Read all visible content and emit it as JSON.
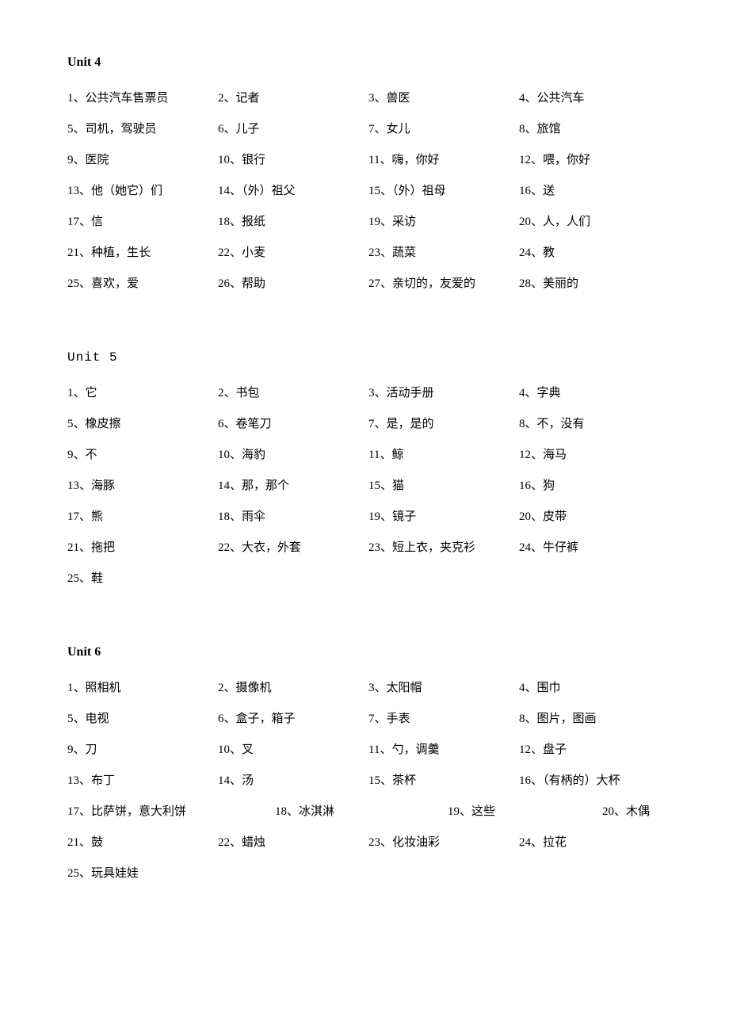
{
  "text_color": "#000000",
  "background_color": "#ffffff",
  "font_size_title": 16,
  "font_size_item": 15,
  "units": [
    {
      "title": "Unit 4",
      "title_bold": true,
      "items": [
        "1、公共汽车售票员",
        "2、记者",
        "3、兽医",
        "4、公共汽车",
        "5、司机，驾驶员",
        "6、儿子",
        "7、女儿",
        "8、旅馆",
        "9、医院",
        "10、银行",
        "11、嗨，你好",
        "12、喂，你好",
        "13、他（她它）们",
        "14、（外）祖父",
        "15、（外）祖母",
        "16、送",
        "17、信",
        "18、报纸",
        "19、采访",
        "20、人，人们",
        "21、种植，生长",
        "22、小麦",
        "23、蔬菜",
        "24、教",
        "25、喜欢，爱",
        "26、帮助",
        "27、亲切的，友爱的",
        "28、美丽的"
      ]
    },
    {
      "title": "Unit 5",
      "title_bold": false,
      "items": [
        "1、它",
        "2、书包",
        "3、活动手册",
        "4、字典",
        "5、橡皮擦",
        "6、卷笔刀",
        "7、是，是的",
        "8、不，没有",
        "9、不",
        "10、海豹",
        "11、鲸",
        "12、海马",
        "13、海豚",
        "14、那，那个",
        "15、猫",
        "16、狗",
        "17、熊",
        "18、雨伞",
        "19、镜子",
        "20、皮带",
        "21、拖把",
        "22、大衣，外套",
        "23、短上衣，夹克衫",
        "24、牛仔裤"
      ],
      "extra_item": "25、鞋"
    },
    {
      "title": "Unit 6",
      "title_bold": true,
      "items": [
        "1、照相机",
        "2、摄像机",
        "3、太阳帽",
        "4、围巾",
        "5、电视",
        "6、盒子，箱子",
        "7、手表",
        "8、图片，图画",
        "9、刀",
        "10、叉",
        "11、勺，调羹",
        "12、盘子",
        "13、布丁",
        "14、汤",
        "15、茶杯",
        "16、（有柄的）大杯"
      ],
      "shifted_row": [
        "17、比萨饼，意大利饼",
        "18、冰淇淋",
        "19、这些",
        "20、木偶"
      ],
      "items_after": [
        "21、鼓",
        "22、蜡烛",
        "23、化妆油彩",
        "24、拉花"
      ],
      "extra_item": "25、玩具娃娃"
    }
  ]
}
